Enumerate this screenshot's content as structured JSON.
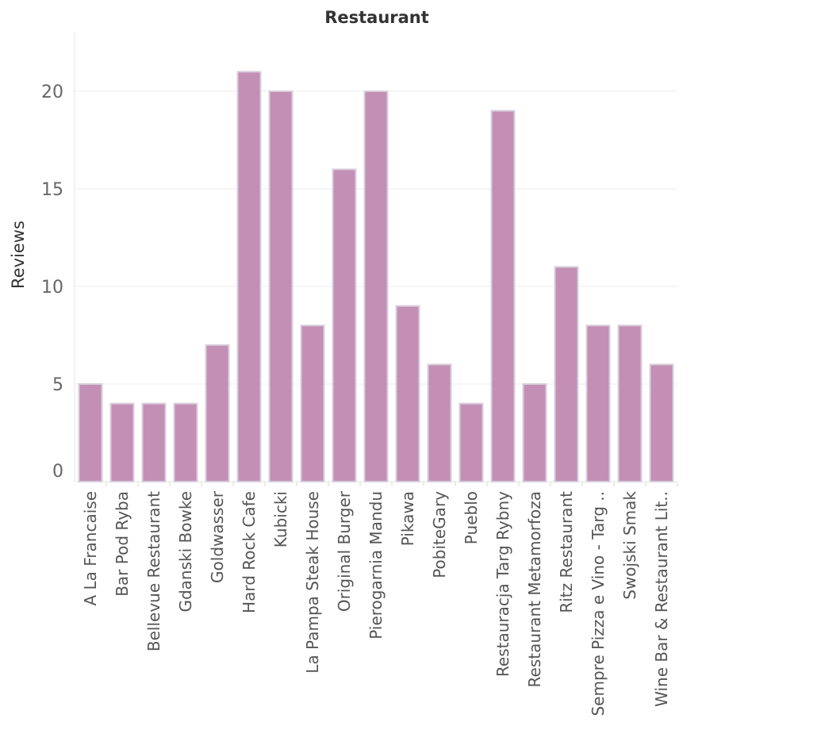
{
  "chart_data": {
    "type": "bar",
    "title": "Restaurant",
    "xlabel": "",
    "ylabel": "Reviews",
    "categories": [
      "A La Francaise",
      "Bar Pod Ryba",
      "Bellevue Restaurant",
      "Gdanski Bowke",
      "Goldwasser",
      "Hard Rock Cafe",
      "Kubicki",
      "La Pampa Steak House",
      "Original Burger",
      "Pierogarnia Mandu",
      "Pikawa",
      "PobiteGary",
      "Pueblo",
      "Restauracja Targ Rybny",
      "Restaurant Metamorfoza",
      "Ritz Restaurant",
      "Sempre Pizza e Vino - Targ ..",
      "Swojski Smak",
      "Wine Bar & Restaurant Lit.."
    ],
    "values": [
      5,
      4,
      4,
      4,
      7,
      21,
      20,
      8,
      16,
      20,
      9,
      6,
      4,
      19,
      5,
      11,
      8,
      8,
      6
    ],
    "yticks": [
      0,
      5,
      10,
      15,
      20
    ],
    "ylim": [
      0,
      23
    ],
    "grid": true,
    "bar_color": "#c38fb5",
    "bar_edge_color": "#d9cfdc"
  }
}
